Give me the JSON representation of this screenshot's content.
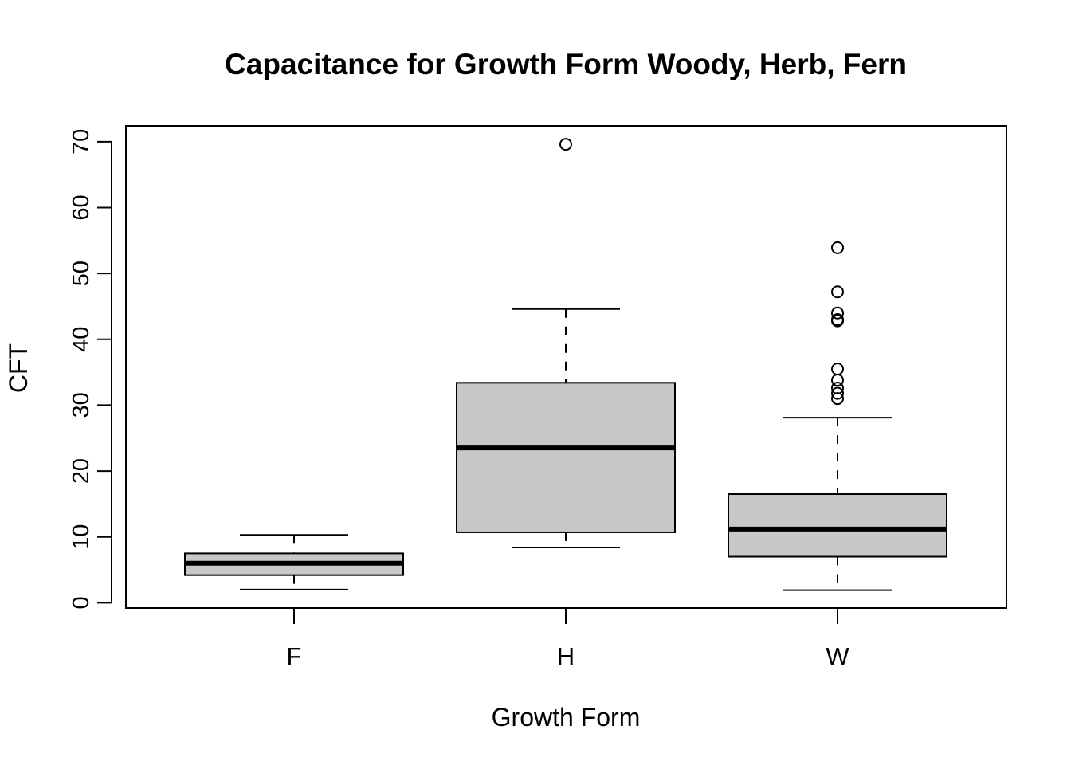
{
  "chart_data": {
    "type": "boxplot",
    "title": "Capacitance for Growth Form Woody, Herb, Fern",
    "xlabel": "Growth Form",
    "ylabel": "CFT",
    "ylim": [
      -0.8,
      72.4
    ],
    "y_ticks": [
      "0",
      "10",
      "20",
      "30",
      "40",
      "50",
      "60",
      "70"
    ],
    "y_tick_values": [
      0,
      10,
      20,
      30,
      40,
      50,
      60,
      70
    ],
    "grid": false,
    "box_fill": "#c8c8c8",
    "categories": [
      "F",
      "H",
      "W"
    ],
    "boxes": [
      {
        "category": "F",
        "whisker_low": 2.0,
        "q1": 4.2,
        "median": 6.0,
        "q3": 7.5,
        "whisker_high": 10.3,
        "outliers": []
      },
      {
        "category": "H",
        "whisker_low": 8.4,
        "q1": 10.7,
        "median": 23.5,
        "q3": 33.4,
        "whisker_high": 44.6,
        "outliers": [
          69.6
        ]
      },
      {
        "category": "W",
        "whisker_low": 1.9,
        "q1": 7.0,
        "median": 11.2,
        "q3": 16.5,
        "whisker_high": 28.1,
        "outliers": [
          31.0,
          31.8,
          32.6,
          33.8,
          35.5,
          42.8,
          43.0,
          44.0,
          47.2,
          53.9
        ]
      }
    ]
  }
}
